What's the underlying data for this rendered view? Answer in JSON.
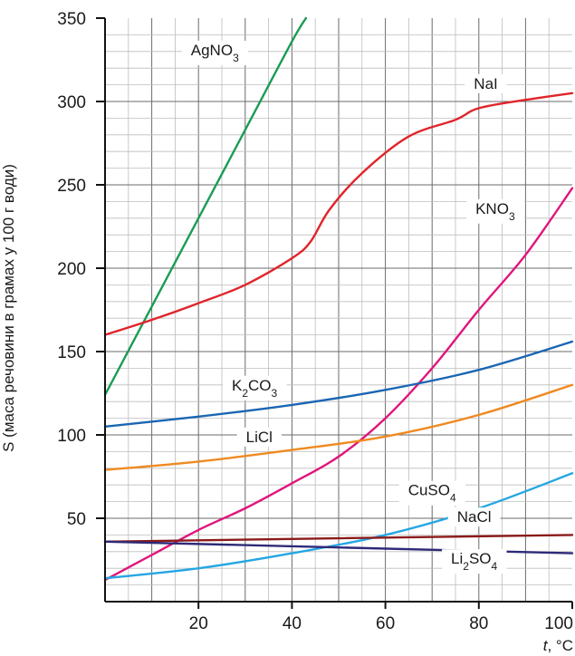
{
  "chart_data": {
    "type": "line",
    "xlabel": {
      "var": "t",
      "unit": ", °C"
    },
    "ylabel": "S (маса речовини в грамах у 100 г води)",
    "xlim": [
      0,
      100
    ],
    "ylim": [
      0,
      350
    ],
    "x_ticks": [
      20,
      40,
      60,
      80,
      100
    ],
    "y_ticks": [
      50,
      100,
      150,
      200,
      250,
      300,
      350
    ],
    "grid": true,
    "series": [
      {
        "name": "AgNO3",
        "label": {
          "base": "AgNO",
          "sub": "3",
          "after": ""
        },
        "color": "#1a9c55",
        "x": [
          0,
          10,
          20,
          30,
          40,
          43
        ],
        "y": [
          124,
          177,
          230,
          283,
          336,
          350
        ],
        "label_at": {
          "x": 23.5,
          "y": 331
        }
      },
      {
        "name": "NaI",
        "label": {
          "base": "NaI",
          "sub": "",
          "after": ""
        },
        "color": "#e0242b",
        "x": [
          0,
          10,
          20,
          30,
          40,
          44,
          48,
          55,
          65,
          75,
          80,
          90,
          100
        ],
        "y": [
          160,
          169,
          179,
          190,
          206,
          216,
          235,
          257,
          279,
          289,
          296,
          301,
          305
        ],
        "label_at": {
          "x": 81.5,
          "y": 311
        }
      },
      {
        "name": "KNO3",
        "label": {
          "base": "KNO",
          "sub": "3",
          "after": ""
        },
        "color": "#e0157b",
        "x": [
          0,
          10,
          20,
          30,
          40,
          50,
          60,
          70,
          80,
          90,
          100
        ],
        "y": [
          13,
          28,
          43,
          56,
          71,
          87,
          110,
          140,
          175,
          208,
          248
        ],
        "label_at": {
          "x": 83.5,
          "y": 236
        }
      },
      {
        "name": "K2CO3",
        "label": {
          "base": "K",
          "sub": "2",
          "after": "CO",
          "sub2": "3"
        },
        "color": "#1a66b3",
        "x": [
          0,
          20,
          40,
          60,
          80,
          100
        ],
        "y": [
          105,
          111,
          118,
          127,
          139,
          156
        ],
        "label_at": {
          "x": 32,
          "y": 130
        }
      },
      {
        "name": "LiCl",
        "label": {
          "base": "LiCl",
          "sub": "",
          "after": ""
        },
        "color": "#ef8a21",
        "x": [
          0,
          20,
          40,
          60,
          80,
          100
        ],
        "y": [
          79,
          84,
          91,
          99,
          112,
          130
        ],
        "label_at": {
          "x": 33,
          "y": 99
        }
      },
      {
        "name": "CuSO4",
        "label": {
          "base": "CuSO",
          "sub": "4",
          "after": ""
        },
        "color": "#25a6e3",
        "x": [
          0,
          20,
          40,
          60,
          80,
          100
        ],
        "y": [
          14,
          20,
          29,
          40,
          56,
          77
        ],
        "label_at": {
          "x": 70,
          "y": 67
        }
      },
      {
        "name": "NaCl",
        "label": {
          "base": "NaCl",
          "sub": "",
          "after": ""
        },
        "color": "#8b1a1a",
        "x": [
          0,
          100
        ],
        "y": [
          36,
          40
        ],
        "label_at": {
          "x": 79,
          "y": 51
        }
      },
      {
        "name": "Li2SO4",
        "label": {
          "base": "Li",
          "sub": "2",
          "after": "SO",
          "sub2": "4"
        },
        "color": "#2e2a78",
        "x": [
          0,
          100
        ],
        "y": [
          36,
          29
        ],
        "label_at": {
          "x": 79,
          "y": 26
        }
      }
    ]
  }
}
